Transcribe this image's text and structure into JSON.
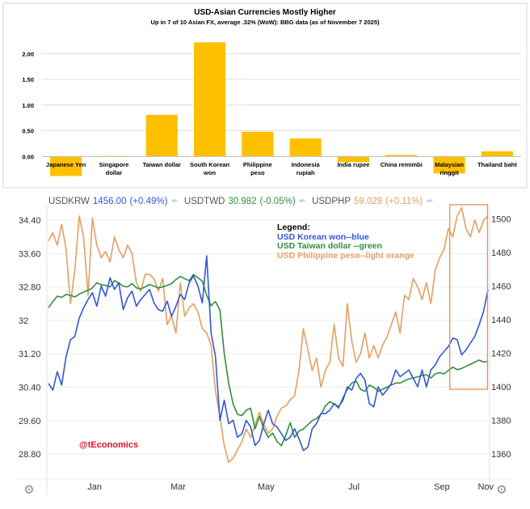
{
  "chart_data": [
    {
      "type": "bar",
      "title": "USD-Asian Currencies Mostly Higher",
      "subtitle": "Up in 7 of 10 Asian FX, average .32% (WoW): BBG data (as of November  7 2025)",
      "categories": [
        "Japanese Yen",
        "Singapore dollar",
        "Taiwan dollar",
        "South Korean won",
        "Philippine peso",
        "Indonesia rupiah",
        "India rupee",
        "China remimbi",
        "Malaysian ringgit",
        "Thailand baht"
      ],
      "category_lines": [
        [
          "Japanese Yen"
        ],
        [
          "Singapore",
          "dollar"
        ],
        [
          "Taiwan dollar"
        ],
        [
          "South Korean",
          "won"
        ],
        [
          "Philippine",
          "peso"
        ],
        [
          "Indonesia",
          "rupiah"
        ],
        [
          "India rupee"
        ],
        [
          "China remimbi"
        ],
        [
          "Malaysian",
          "ringgit"
        ],
        [
          "Thailand baht"
        ]
      ],
      "values": [
        -0.38,
        0.01,
        0.81,
        2.22,
        0.48,
        0.35,
        -0.11,
        0.03,
        -0.33,
        0.1
      ],
      "ylim": [
        -0.45,
        2.35
      ],
      "yticks": [
        "2.00",
        "1.50",
        "1.00",
        "0.50",
        "0.00"
      ],
      "ytick_values": [
        2.0,
        1.5,
        1.0,
        0.5,
        0.0
      ],
      "color": "#ffc000",
      "grid": true
    },
    {
      "type": "line",
      "x_range": [
        0,
        100
      ],
      "xticks": [
        "Jan",
        "Mar",
        "May",
        "Jul",
        "Sep",
        "Nov"
      ],
      "xtick_values": [
        10.5,
        29.5,
        49.5,
        69.5,
        89.5,
        99.5
      ],
      "left_axis": {
        "ylim": [
          28.2,
          34.75
        ],
        "ticks": [
          "34.40",
          "33.60",
          "32.80",
          "32",
          "31.20",
          "30.40",
          "29.60",
          "28.80"
        ],
        "tick_values": [
          34.4,
          33.6,
          32.8,
          32.0,
          31.2,
          30.4,
          29.6,
          28.8
        ]
      },
      "right_axis": {
        "ylim": [
          1345,
          1508
        ],
        "ticks": [
          "1500",
          "1480",
          "1460",
          "1440",
          "1420",
          "1400",
          "1380",
          "1360"
        ],
        "tick_values": [
          1500,
          1480,
          1460,
          1440,
          1420,
          1400,
          1380,
          1360
        ]
      },
      "series": [
        {
          "name": "USDKRW",
          "axis": "right",
          "color": "#3355dd",
          "x": [
            0,
            1,
            2,
            3,
            4,
            5,
            6,
            7,
            8,
            9,
            10,
            11,
            12,
            13,
            14,
            15,
            16,
            17,
            18,
            19,
            20,
            21,
            22,
            23,
            24,
            25,
            26,
            27,
            28,
            29,
            30,
            31,
            32,
            33,
            34,
            35,
            36,
            37,
            38,
            39,
            40,
            41,
            42,
            43,
            44,
            45,
            46,
            47,
            48,
            49,
            50,
            51,
            52,
            53,
            54,
            55,
            56,
            57,
            58,
            59,
            60,
            61,
            62,
            63,
            64,
            65,
            66,
            67,
            68,
            69,
            70,
            71,
            72,
            73,
            74,
            75,
            76,
            77,
            78,
            79,
            80,
            81,
            82,
            83,
            84,
            85,
            86,
            87,
            88,
            89,
            90,
            91,
            92,
            93,
            94,
            95,
            96,
            97,
            98,
            99,
            100
          ],
          "y": [
            1402,
            1398,
            1409,
            1401,
            1418,
            1428,
            1430,
            1441,
            1447,
            1452,
            1456,
            1448,
            1460,
            1454,
            1465,
            1458,
            1462,
            1446,
            1453,
            1457,
            1448,
            1452,
            1455,
            1458,
            1450,
            1446,
            1445,
            1451,
            1442,
            1448,
            1455,
            1452,
            1462,
            1466,
            1460,
            1450,
            1478,
            1432,
            1418,
            1380,
            1392,
            1378,
            1380,
            1370,
            1372,
            1380,
            1376,
            1365,
            1368,
            1378,
            1386,
            1378,
            1376,
            1372,
            1368,
            1370,
            1375,
            1369,
            1362,
            1364,
            1375,
            1378,
            1384,
            1384,
            1386,
            1390,
            1388,
            1392,
            1400,
            1398,
            1405,
            1408,
            1404,
            1390,
            1388,
            1400,
            1395,
            1398,
            1402,
            1410,
            1406,
            1408,
            1410,
            1405,
            1400,
            1410,
            1400,
            1410,
            1413,
            1418,
            1421,
            1424,
            1429,
            1428,
            1419,
            1422,
            1426,
            1430,
            1437,
            1445,
            1458
          ]
        },
        {
          "name": "USDTWD",
          "axis": "left",
          "color": "#2f8f3f",
          "x": [
            0,
            1,
            2,
            3,
            4,
            5,
            6,
            7,
            8,
            9,
            10,
            11,
            12,
            13,
            14,
            15,
            16,
            17,
            18,
            19,
            20,
            21,
            22,
            23,
            24,
            25,
            26,
            27,
            28,
            29,
            30,
            31,
            32,
            33,
            34,
            35,
            36,
            37,
            38,
            39,
            40,
            41,
            42,
            43,
            44,
            45,
            46,
            47,
            48,
            49,
            50,
            51,
            52,
            53,
            54,
            55,
            56,
            57,
            58,
            59,
            60,
            61,
            62,
            63,
            64,
            65,
            66,
            67,
            68,
            69,
            70,
            71,
            72,
            73,
            74,
            75,
            76,
            77,
            78,
            79,
            80,
            81,
            82,
            83,
            84,
            85,
            86,
            87,
            88,
            89,
            90,
            91,
            92,
            93,
            94,
            95,
            96,
            97,
            98,
            99,
            100
          ],
          "y": [
            32.3,
            32.45,
            32.58,
            32.55,
            32.62,
            32.6,
            32.56,
            32.63,
            32.68,
            32.72,
            32.78,
            32.9,
            32.85,
            32.84,
            32.8,
            32.95,
            32.9,
            32.82,
            32.8,
            32.88,
            32.78,
            32.75,
            32.8,
            32.86,
            32.82,
            32.78,
            32.8,
            32.84,
            32.88,
            32.98,
            33.05,
            33.0,
            32.95,
            33.1,
            33.02,
            32.94,
            32.6,
            32.35,
            32.45,
            32.25,
            31.2,
            30.5,
            30.0,
            29.75,
            29.72,
            29.85,
            29.9,
            29.4,
            29.7,
            29.4,
            29.2,
            29.3,
            29.1,
            29.0,
            29.25,
            29.55,
            29.2,
            29.35,
            29.4,
            29.5,
            29.6,
            29.65,
            29.75,
            29.95,
            30.05,
            30.0,
            29.9,
            30.15,
            30.35,
            30.5,
            30.55,
            30.35,
            30.3,
            30.45,
            30.4,
            30.3,
            30.35,
            30.4,
            30.45,
            30.5,
            30.5,
            30.55,
            30.6,
            30.62,
            30.65,
            30.68,
            30.7,
            30.62,
            30.72,
            30.75,
            30.72,
            30.8,
            30.88,
            30.82,
            30.85,
            30.9,
            30.95,
            31.0,
            31.05,
            31.0,
            31.02
          ]
        },
        {
          "name": "USDPHP",
          "axis": "left",
          "color": "#e59f62",
          "x": [
            0,
            1,
            2,
            3,
            4,
            5,
            6,
            7,
            8,
            9,
            10,
            11,
            12,
            13,
            14,
            15,
            16,
            17,
            18,
            19,
            20,
            21,
            22,
            23,
            24,
            25,
            26,
            27,
            28,
            29,
            30,
            31,
            32,
            33,
            34,
            35,
            36,
            37,
            38,
            39,
            40,
            41,
            42,
            43,
            44,
            45,
            46,
            47,
            48,
            49,
            50,
            51,
            52,
            53,
            54,
            55,
            56,
            57,
            58,
            59,
            60,
            61,
            62,
            63,
            64,
            65,
            66,
            67,
            68,
            69,
            70,
            71,
            72,
            73,
            74,
            75,
            76,
            77,
            78,
            79,
            80,
            81,
            82,
            83,
            84,
            85,
            86,
            87,
            88,
            89,
            90,
            91,
            92,
            93,
            94,
            95,
            96,
            97,
            98,
            99,
            100
          ],
          "y": [
            33.9,
            34.1,
            33.8,
            34.3,
            33.7,
            32.4,
            33.2,
            34.5,
            34.0,
            32.6,
            34.45,
            33.8,
            33.5,
            33.65,
            33.4,
            34.0,
            33.7,
            33.5,
            33.8,
            33.6,
            32.9,
            32.7,
            33.1,
            33.1,
            33.0,
            32.7,
            33.0,
            31.9,
            32.1,
            31.7,
            32.9,
            32.1,
            32.3,
            32.4,
            32.2,
            31.8,
            31.7,
            31.4,
            30.3,
            29.7,
            29.0,
            28.6,
            28.7,
            28.9,
            29.1,
            29.4,
            29.2,
            29.5,
            29.8,
            29.5,
            29.3,
            29.4,
            29.7,
            29.9,
            29.95,
            30.1,
            30.2,
            30.8,
            31.8,
            31.3,
            30.8,
            31.1,
            30.4,
            30.8,
            31.0,
            31.9,
            31.1,
            30.9,
            32.4,
            31.5,
            31.0,
            31.2,
            31.7,
            31.1,
            31.4,
            31.1,
            31.4,
            31.6,
            31.9,
            32.2,
            31.7,
            32.6,
            32.5,
            33.0,
            32.8,
            32.5,
            32.9,
            32.4,
            33.2,
            33.5,
            33.7,
            34.2,
            34.0,
            34.5,
            34.7,
            34.2,
            34.0,
            34.4,
            34.1,
            34.4,
            34.5
          ]
        }
      ],
      "quotes": [
        {
          "symbol": "USDKRW",
          "value": "1456.00",
          "change": "(+0.49%)",
          "color": "#3355dd"
        },
        {
          "symbol": "USDTWD",
          "value": "30.982",
          "change": "(-0.05%)",
          "color": "#2f8f3f"
        },
        {
          "symbol": "USDPHP",
          "value": "59.029",
          "change": "(+0.11%)",
          "color": "#e59f62"
        }
      ],
      "legend": {
        "title": "Legend:",
        "items": [
          {
            "text": "USD Korean won--blue",
            "color": "#3355dd"
          },
          {
            "text": "USD Taiwan dollar --green",
            "color": "#2f8f3f"
          },
          {
            "text": "USD Philippine peso--light orange",
            "color": "#e59f62"
          }
        ]
      },
      "annotation": "@tEconomics",
      "highlight_box_color": "#e8904a"
    }
  ]
}
